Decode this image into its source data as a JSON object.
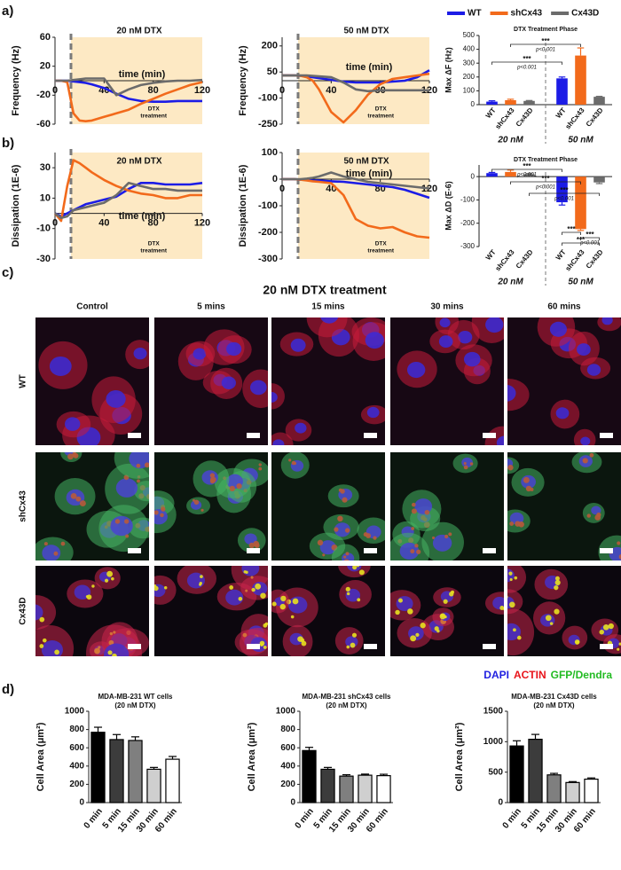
{
  "chart_data": [
    {
      "type": "line",
      "panel_label": "a)",
      "title": "20 nM DTX",
      "y_label": "Frequency (Hz)",
      "x_label": "time (min)",
      "annotation": [
        "DTX",
        "treatment"
      ],
      "treatment_start": 13,
      "x": [
        0,
        5,
        10,
        15,
        20,
        25,
        30,
        40,
        50,
        60,
        70,
        80,
        90,
        100,
        110,
        120
      ],
      "xlim": [
        0,
        120
      ],
      "xticks": [
        0,
        40,
        80,
        120
      ],
      "ylim": [
        -60,
        60
      ],
      "yticks": [
        60,
        20,
        -20,
        -60
      ],
      "series": [
        {
          "color": "#1c1ce6",
          "values": [
            0,
            0,
            0,
            -1,
            -2,
            -3,
            -5,
            -10,
            -18,
            -25,
            -28,
            -29,
            -29,
            -28,
            -28,
            -28
          ]
        },
        {
          "color": "#f26a1b",
          "values": [
            0,
            0,
            -2,
            -45,
            -55,
            -56,
            -55,
            -50,
            -45,
            -40,
            -32,
            -25,
            -18,
            -12,
            -6,
            -2
          ]
        },
        {
          "color": "#6b6b6b",
          "values": [
            0,
            0,
            0,
            1,
            2,
            3,
            3,
            3,
            -20,
            -12,
            -6,
            -3,
            -1,
            0,
            0,
            1
          ]
        }
      ]
    },
    {
      "type": "line",
      "title": "50 nM DTX",
      "y_label": "Frequency (Hz)",
      "x_label": "time (min)",
      "annotation": [
        "DTX",
        "treatment"
      ],
      "treatment_start": 13,
      "x": [
        0,
        5,
        10,
        15,
        20,
        25,
        30,
        40,
        50,
        60,
        70,
        80,
        90,
        100,
        110,
        120
      ],
      "xlim": [
        0,
        120
      ],
      "xticks": [
        0,
        40,
        80,
        120
      ],
      "ylim": [
        -250,
        250
      ],
      "yticks": [
        200,
        50,
        -100,
        -250
      ],
      "series": [
        {
          "color": "#1c1ce6",
          "values": [
            30,
            30,
            30,
            28,
            25,
            20,
            15,
            5,
            -5,
            -10,
            -10,
            -10,
            -5,
            0,
            20,
            60
          ]
        },
        {
          "color": "#f26a1b",
          "values": [
            30,
            30,
            30,
            28,
            20,
            0,
            -50,
            -180,
            -240,
            -170,
            -80,
            -20,
            10,
            20,
            30,
            40
          ]
        },
        {
          "color": "#6b6b6b",
          "values": [
            30,
            30,
            30,
            30,
            30,
            28,
            25,
            20,
            -10,
            -50,
            -60,
            -55,
            -55,
            -55,
            -55,
            -55
          ]
        }
      ]
    },
    {
      "type": "bar",
      "title": "DTX Treatment Phase",
      "y_label": "Max ΔF (Hz)",
      "legend": [
        {
          "name": "WT",
          "color": "#1c1ce6"
        },
        {
          "name": "shCx43",
          "color": "#f26a1b"
        },
        {
          "name": "Cx43D",
          "color": "#6b6b6b"
        }
      ],
      "categories": [
        "WT",
        "shCx43",
        "Cx43D",
        "WT",
        "shCx43",
        "Cx43D"
      ],
      "groups": [
        "20 nM",
        "50 nM"
      ],
      "values": [
        22,
        32,
        27,
        190,
        355,
        57
      ],
      "errors": [
        6,
        7,
        3,
        10,
        55,
        3
      ],
      "colors": [
        "#1c1ce6",
        "#f26a1b",
        "#6b6b6b",
        "#1c1ce6",
        "#f26a1b",
        "#6b6b6b"
      ],
      "ylim": [
        0,
        500
      ],
      "yticks": [
        0,
        100,
        200,
        300,
        400,
        500
      ],
      "comparisons": [
        {
          "from": 0,
          "to": 3,
          "label": "***",
          "p": "p<0.001"
        },
        {
          "from": 1,
          "to": 4,
          "label": "***",
          "p": "p<0.001"
        }
      ]
    },
    {
      "type": "line",
      "panel_label": "b)",
      "title": "20 nM DTX",
      "y_label": "Dissipation (1E-6)",
      "x_label": "time (min)",
      "annotation": [
        "DTX",
        "treatment"
      ],
      "treatment_start": 13,
      "x": [
        0,
        5,
        10,
        15,
        20,
        25,
        30,
        40,
        50,
        60,
        70,
        80,
        90,
        100,
        110,
        120
      ],
      "xlim": [
        0,
        120
      ],
      "xticks": [
        0,
        40,
        80,
        120
      ],
      "ylim": [
        -30,
        40
      ],
      "yticks": [
        30,
        10,
        -10,
        -30
      ],
      "series": [
        {
          "color": "#1c1ce6",
          "values": [
            0,
            -2,
            0,
            2,
            4,
            6,
            7,
            9,
            11,
            16,
            20,
            20,
            19,
            19,
            19,
            20
          ]
        },
        {
          "color": "#f26a1b",
          "values": [
            0,
            -5,
            18,
            35,
            33,
            30,
            27,
            22,
            18,
            15,
            13,
            12,
            10,
            10,
            12,
            12
          ]
        },
        {
          "color": "#6b6b6b",
          "values": [
            0,
            -3,
            -2,
            2,
            3,
            4,
            5,
            7,
            12,
            20,
            18,
            16,
            16,
            15,
            15,
            15
          ]
        }
      ]
    },
    {
      "type": "line",
      "title": "50 nM DTX",
      "y_label": "Dissipation (1E-6)",
      "x_label": "time (min)",
      "annotation": [
        "DTX",
        "treatment"
      ],
      "treatment_start": 13,
      "x": [
        0,
        5,
        10,
        15,
        20,
        25,
        30,
        40,
        50,
        60,
        70,
        80,
        90,
        100,
        110,
        120
      ],
      "xlim": [
        0,
        120
      ],
      "xticks": [
        0,
        40,
        80,
        120
      ],
      "ylim": [
        -300,
        100
      ],
      "yticks": [
        100,
        0,
        -100,
        -200,
        -300
      ],
      "series": [
        {
          "color": "#1c1ce6",
          "values": [
            0,
            0,
            0,
            -2,
            -3,
            -5,
            -5,
            -8,
            -10,
            -15,
            -20,
            -25,
            -30,
            -40,
            -55,
            -70
          ]
        },
        {
          "color": "#f26a1b",
          "values": [
            0,
            0,
            0,
            -2,
            -5,
            -8,
            -10,
            -15,
            -60,
            -150,
            -175,
            -185,
            -180,
            -200,
            -215,
            -220
          ]
        },
        {
          "color": "#6b6b6b",
          "values": [
            0,
            0,
            0,
            0,
            2,
            5,
            10,
            25,
            10,
            0,
            -10,
            -15,
            -20,
            -25,
            -30,
            -35
          ]
        }
      ]
    },
    {
      "type": "bar",
      "title": "DTX Treatment Phase",
      "y_label": "Max ΔD (E-6)",
      "categories": [
        "WT",
        "shCx43",
        "Cx43D",
        "WT",
        "shCx43",
        "Cx43D"
      ],
      "groups": [
        "20 nM",
        "50 nM"
      ],
      "values": [
        15,
        20,
        10,
        -110,
        -225,
        -25
      ],
      "errors": [
        3,
        8,
        3,
        12,
        6,
        5
      ],
      "colors": [
        "#1c1ce6",
        "#f26a1b",
        "#6b6b6b",
        "#1c1ce6",
        "#f26a1b",
        "#6b6b6b"
      ],
      "ylim": [
        -300,
        50
      ],
      "yticks": [
        0,
        -100,
        -200,
        -300
      ],
      "comparisons": [
        {
          "from": 0,
          "to": 3,
          "label": "***",
          "p": "p<0.001"
        },
        {
          "from": 1,
          "to": 4,
          "label": "***",
          "p": "p<0.001"
        },
        {
          "from": 2,
          "to": 5,
          "label": "***",
          "p": "p<0.001"
        },
        {
          "from": 3,
          "to": 4,
          "label": "***"
        },
        {
          "from": 4,
          "to": 5,
          "label": "***",
          "p": "p<0.001"
        },
        {
          "from": 3,
          "to": 5,
          "label": "***"
        }
      ]
    },
    {
      "type": "bar",
      "panel_label": "d)",
      "title": "MDA-MB-231 WT cells",
      "subtitle": "(20 nM DTX)",
      "y_label": "Cell Area (μm²)",
      "categories": [
        "0 min",
        "5 min",
        "15 min",
        "30 min",
        "60 min"
      ],
      "values": [
        770,
        690,
        680,
        365,
        475
      ],
      "errors": [
        55,
        55,
        40,
        20,
        30
      ],
      "colors": [
        "#000000",
        "#3c3c3c",
        "#7f7f7f",
        "#cfcfcf",
        "#ffffff"
      ],
      "ylim": [
        0,
        1000
      ],
      "yticks": [
        0,
        200,
        400,
        600,
        800,
        1000
      ]
    },
    {
      "type": "bar",
      "title": "MDA-MB-231 shCx43 cells",
      "subtitle": "(20 nM DTX)",
      "y_label": "Cell Area (μm²)",
      "categories": [
        "0 min",
        "5 min",
        "15 min",
        "30 min",
        "60 min"
      ],
      "values": [
        570,
        365,
        290,
        300,
        295
      ],
      "errors": [
        35,
        20,
        15,
        12,
        15
      ],
      "colors": [
        "#000000",
        "#3c3c3c",
        "#7f7f7f",
        "#cfcfcf",
        "#ffffff"
      ],
      "ylim": [
        0,
        1000
      ],
      "yticks": [
        0,
        200,
        400,
        600,
        800,
        1000
      ]
    },
    {
      "type": "bar",
      "title": "MDA-MB-231 Cx43D cells",
      "subtitle": "(20 nM DTX)",
      "y_label": "Cell Area (μm²)",
      "categories": [
        "0 min",
        "5 min",
        "15 min",
        "30 min",
        "60 min"
      ],
      "values": [
        930,
        1040,
        455,
        330,
        385
      ],
      "errors": [
        85,
        80,
        25,
        15,
        20
      ],
      "colors": [
        "#000000",
        "#3c3c3c",
        "#7f7f7f",
        "#cfcfcf",
        "#ffffff"
      ],
      "ylim": [
        0,
        1500
      ],
      "yticks": [
        0,
        500,
        1000,
        1500
      ]
    }
  ],
  "micrograph_panel": {
    "label": "c)",
    "title": "20 nM DTX treatment",
    "columns": [
      "Control",
      "5 mins",
      "15 mins",
      "30 mins",
      "60 mins"
    ],
    "rows": [
      "WT",
      "shCx43",
      "Cx43D"
    ],
    "stain_legend": [
      {
        "text": "DAPI",
        "color": "#1f1fe0"
      },
      {
        "text": "ACTIN",
        "color": "#e8141b"
      },
      {
        "text": "GFP/Dendra",
        "color": "#22bb22"
      }
    ]
  }
}
